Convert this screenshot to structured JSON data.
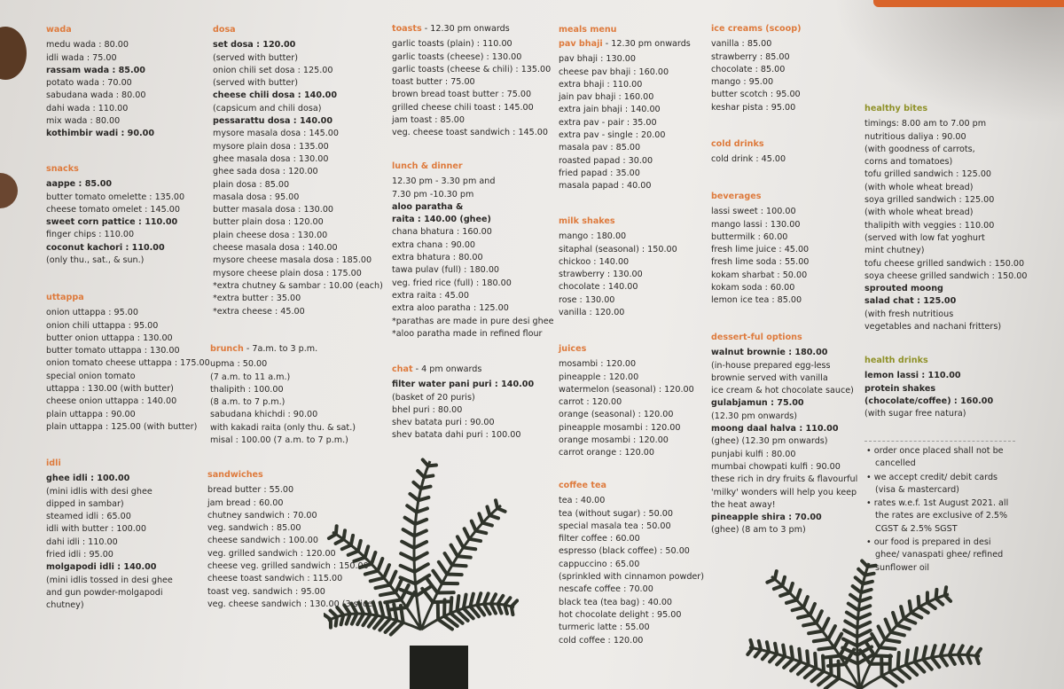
{
  "col1": [
    {
      "title": "wada",
      "items": [
        {
          "t": "medu wada  :  80.00"
        },
        {
          "t": "idli wada  :  75.00"
        },
        {
          "t": "rassam wada  :  85.00",
          "b": true
        },
        {
          "t": "potato wada  :  70.00"
        },
        {
          "t": "sabudana wada  :  80.00"
        },
        {
          "t": "dahi wada  :  110.00"
        },
        {
          "t": "mix wada  :  80.00"
        },
        {
          "t": "kothimbir wadi  :  90.00",
          "b": true
        }
      ]
    },
    {
      "title": "snacks",
      "items": [
        {
          "t": "aappe  :  85.00",
          "b": true
        },
        {
          "t": "butter tomato omelette  : 135.00"
        },
        {
          "t": "cheese tomato omelet  : 145.00"
        },
        {
          "t": "sweet corn pattice  :  110.00",
          "b": true
        },
        {
          "t": "finger chips  :  110.00"
        },
        {
          "t": "coconut kachori  :  110.00",
          "b": true
        },
        {
          "t": "(only thu., sat., & sun.)"
        }
      ]
    },
    {
      "title": "uttappa",
      "items": [
        {
          "t": "onion uttappa  :  95.00"
        },
        {
          "t": "onion chili uttappa  :  95.00"
        },
        {
          "t": "butter onion uttappa  :  130.00"
        },
        {
          "t": "butter tomato uttappa  :  130.00"
        },
        {
          "t": "onion tomato cheese uttappa  : 175.00"
        },
        {
          "t": "special onion tomato"
        },
        {
          "t": "uttappa  : 130.00 (with butter)"
        },
        {
          "t": "cheese onion uttappa  : 140.00"
        },
        {
          "t": "plain uttappa  :  90.00"
        },
        {
          "t": "plain uttappa  :  125.00 (with butter)"
        }
      ]
    },
    {
      "title": "idli",
      "items": [
        {
          "t": "ghee idli  :  100.00",
          "b": true
        },
        {
          "t": "(mini idlis with desi ghee"
        },
        {
          "t": "dipped in sambar)"
        },
        {
          "t": "steamed idli  :  65.00"
        },
        {
          "t": "idli with butter  :  100.00"
        },
        {
          "t": "dahi idli  :  110.00"
        },
        {
          "t": "fried idli  :  95.00"
        },
        {
          "t": "molgapodi idli  :  140.00",
          "b": true
        },
        {
          "t": "(mini idlis tossed in desi ghee"
        },
        {
          "t": "and gun powder-molgapodi"
        },
        {
          "t": "chutney)"
        }
      ]
    }
  ],
  "col2": [
    {
      "title": "dosa",
      "items": [
        {
          "t": "set dosa  :  120.00",
          "b": true
        },
        {
          "t": "(served with butter)"
        },
        {
          "t": "onion chili set dosa  :  125.00"
        },
        {
          "t": "(served with butter)"
        },
        {
          "t": "cheese chili dosa  :  140.00",
          "b": true
        },
        {
          "t": "(capsicum and chili dosa)"
        },
        {
          "t": "pessarattu dosa  :  140.00",
          "b": true
        },
        {
          "t": "mysore masala dosa  :  145.00"
        },
        {
          "t": "mysore plain dosa  :  135.00"
        },
        {
          "t": "ghee masala dosa  :  130.00"
        },
        {
          "t": "ghee sada dosa  :  120.00"
        },
        {
          "t": "plain dosa  :  85.00"
        },
        {
          "t": "masala dosa  :  95.00"
        },
        {
          "t": "butter masala dosa  : 130.00"
        },
        {
          "t": "butter plain dosa  :  120.00"
        },
        {
          "t": "plain cheese dosa  :  130.00"
        },
        {
          "t": "cheese masala dosa  :  140.00"
        },
        {
          "t": "mysore cheese masala dosa  :  185.00"
        },
        {
          "t": "mysore cheese plain dosa  :  175.00"
        },
        {
          "t": "*extra chutney & sambar  :  10.00 (each)"
        },
        {
          "t": "*extra butter  :  35.00"
        },
        {
          "t": "*extra cheese  :  45.00"
        }
      ]
    },
    {
      "title": "brunch",
      "sub": " - 7a.m. to 3 p.m.",
      "items": [
        {
          "t": "upma  :  50.00"
        },
        {
          "t": "(7 a.m. to 11 a.m.)"
        },
        {
          "t": "thalipith  :  100.00"
        },
        {
          "t": "(8 a.m. to 7 p.m.)"
        },
        {
          "t": "sabudana khichdi  :  90.00"
        },
        {
          "t": "with kakadi raita (only thu. & sat.)"
        },
        {
          "t": "misal  :  100.00 (7 a.m. to 7 p.m.)"
        }
      ]
    },
    {
      "title": "sandwiches",
      "items": [
        {
          "t": "bread butter  :  55.00"
        },
        {
          "t": "jam bread  :  60.00"
        },
        {
          "t": "chutney sandwich  :  70.00"
        },
        {
          "t": "veg. sandwich  :  85.00"
        },
        {
          "t": "cheese sandwich  :  100.00"
        },
        {
          "t": "veg. grilled sandwich  :  120.00"
        },
        {
          "t": "cheese veg. grilled sandwich  :  150.00"
        },
        {
          "t": "cheese toast sandwich  :  115.00"
        },
        {
          "t": "toast veg. sandwich  :  95.00"
        },
        {
          "t": "veg. cheese sandwich  :  130.00 (3 slice)"
        }
      ]
    }
  ],
  "col3": [
    {
      "title": "toasts",
      "sub": " - 12.30 pm onwards",
      "items": [
        {
          "t": "garlic toasts (plain)  : 110.00"
        },
        {
          "t": "garlic toasts (cheese)  : 130.00"
        },
        {
          "t": "garlic toasts (cheese & chili)  : 135.00"
        },
        {
          "t": "toast butter  : 75.00"
        },
        {
          "t": "brown bread toast butter  : 75.00"
        },
        {
          "t": "grilled cheese chili toast  : 145.00"
        },
        {
          "t": "jam toast  : 85.00"
        },
        {
          "t": "veg. cheese toast sandwich  : 145.00"
        }
      ]
    },
    {
      "title": "lunch & dinner",
      "items": [
        {
          "t": "12.30 pm - 3.30 pm and"
        },
        {
          "t": "7.30 pm -10.30 pm"
        },
        {
          "t": "aloo paratha &",
          "b": true
        },
        {
          "t": "raita  :  140.00 (ghee)",
          "b": true
        },
        {
          "t": "chana bhatura  :  160.00"
        },
        {
          "t": "extra chana  :  90.00"
        },
        {
          "t": "extra bhatura  :  80.00"
        },
        {
          "t": "tawa pulav (full)  :  180.00"
        },
        {
          "t": "veg. fried rice (full)  :  180.00"
        },
        {
          "t": "extra raita  :  45.00"
        },
        {
          "t": "extra aloo paratha  :  125.00"
        },
        {
          "t": "*parathas are made in pure desi ghee"
        },
        {
          "t": "*aloo paratha made in refined flour"
        }
      ]
    },
    {
      "title": "chat",
      "sub": " - 4 pm onwards",
      "items": [
        {
          "t": "filter water pani puri  :  140.00",
          "b": true
        },
        {
          "t": "(basket of 20 puris)"
        },
        {
          "t": "bhel puri  :  80.00"
        },
        {
          "t": "shev batata puri  :  90.00"
        },
        {
          "t": "shev batata dahi puri  :  100.00"
        }
      ]
    }
  ],
  "col4": [
    {
      "title": "meals menu",
      "items": []
    },
    {
      "title": "pav bhaji",
      "sub": " - 12.30 pm onwards",
      "items": [
        {
          "t": "pav bhaji  : 130.00"
        },
        {
          "t": "cheese pav bhaji  : 160.00"
        },
        {
          "t": "extra bhaji  :  110.00"
        },
        {
          "t": "jain pav bhaji  : 160.00"
        },
        {
          "t": "extra jain bhaji  : 140.00"
        },
        {
          "t": "extra pav - pair  :  35.00"
        },
        {
          "t": "extra pav - single  :  20.00"
        },
        {
          "t": "masala pav  :  85.00"
        },
        {
          "t": "roasted papad  :  30.00"
        },
        {
          "t": "fried papad  :  35.00"
        },
        {
          "t": "masala papad  :  40.00"
        }
      ]
    },
    {
      "title": "milk shakes",
      "items": [
        {
          "t": "mango  : 180.00"
        },
        {
          "t": "sitaphal (seasonal)  : 150.00"
        },
        {
          "t": "chickoo  : 140.00"
        },
        {
          "t": "strawberry  : 130.00"
        },
        {
          "t": "chocolate  : 140.00"
        },
        {
          "t": "rose  : 130.00"
        },
        {
          "t": "vanilla  : 120.00"
        }
      ]
    },
    {
      "title": "juices",
      "items": [
        {
          "t": "mosambi  : 120.00"
        },
        {
          "t": "pineapple  : 120.00"
        },
        {
          "t": "watermelon (seasonal)  : 120.00"
        },
        {
          "t": "carrot  : 120.00"
        },
        {
          "t": "orange (seasonal)  : 120.00"
        },
        {
          "t": "pineapple mosambi  : 120.00"
        },
        {
          "t": "orange mosambi  : 120.00"
        },
        {
          "t": "carrot orange  : 120.00"
        }
      ]
    },
    {
      "title": "coffee tea",
      "items": [
        {
          "t": "tea  :  40.00"
        },
        {
          "t": "tea (without sugar)  :  50.00"
        },
        {
          "t": "special masala tea  :  50.00"
        },
        {
          "t": "filter coffee  :  60.00"
        },
        {
          "t": "espresso (black coffee)  :  50.00"
        },
        {
          "t": "cappuccino  :  65.00"
        },
        {
          "t": "(sprinkled with cinnamon powder)"
        },
        {
          "t": "nescafe coffee  :  70.00"
        },
        {
          "t": "black tea (tea bag)  :  40.00"
        },
        {
          "t": "hot chocolate delight  : 95.00"
        },
        {
          "t": "turmeric latte  :  55.00"
        },
        {
          "t": "cold coffee  :  120.00"
        }
      ]
    }
  ],
  "col5": [
    {
      "title": "ice creams (scoop)",
      "items": [
        {
          "t": "vanilla  :  85.00"
        },
        {
          "t": "strawberry  :  85.00"
        },
        {
          "t": "chocolate  :  85.00"
        },
        {
          "t": "mango  :  95.00"
        },
        {
          "t": "butter scotch  :  95.00"
        },
        {
          "t": "keshar pista  :  95.00"
        }
      ]
    },
    {
      "title": "cold drinks",
      "items": [
        {
          "t": "cold drink  :  45.00"
        }
      ]
    },
    {
      "title": "beverages",
      "items": [
        {
          "t": "lassi sweet  :  100.00"
        },
        {
          "t": "mango lassi  : 130.00"
        },
        {
          "t": "buttermilk  :  60.00"
        },
        {
          "t": "fresh lime juice  :  45.00"
        },
        {
          "t": "fresh lime soda  :  55.00"
        },
        {
          "t": "kokam sharbat  :  50.00"
        },
        {
          "t": "kokam soda  :  60.00"
        },
        {
          "t": "lemon ice tea  :  85.00"
        }
      ]
    },
    {
      "title": "dessert-ful options",
      "items": [
        {
          "t": "walnut brownie  :  180.00",
          "b": true
        },
        {
          "t": "(in-house prepared egg-less"
        },
        {
          "t": "brownie served with vanilla"
        },
        {
          "t": "ice cream & hot chocolate sauce)"
        },
        {
          "t": "gulabjamun  :  75.00",
          "b": true
        },
        {
          "t": "(12.30 pm onwards)"
        },
        {
          "t": "moong daal halva  :  110.00",
          "b": true
        },
        {
          "t": "(ghee) (12.30 pm onwards)"
        },
        {
          "t": "punjabi kulfi  :  80.00"
        },
        {
          "t": "mumbai chowpati kulfi  :  90.00"
        },
        {
          "t": "these rich in dry fruits & flavourful"
        },
        {
          "t": "'milky' wonders will help you keep"
        },
        {
          "t": "the heat away!"
        },
        {
          "t": "pineapple shira  :  70.00",
          "b": true
        },
        {
          "t": "(ghee) (8 am to 3 pm)"
        }
      ]
    }
  ],
  "col6": [
    {
      "title": "healthy bites",
      "items": [
        {
          "t": "timings: 8.00 am to  7.00 pm"
        },
        {
          "t": "nutritious daliya  :  90.00"
        },
        {
          "t": "(with goodness of carrots,"
        },
        {
          "t": "corns and tomatoes)"
        },
        {
          "t": "tofu grilled sandwich  :  125.00"
        },
        {
          "t": "(with whole wheat bread)"
        },
        {
          "t": "soya grilled sandwich  :  125.00"
        },
        {
          "t": "(with whole wheat bread)"
        },
        {
          "t": "thalipith with veggies  :  110.00"
        },
        {
          "t": "(served with low fat yoghurt"
        },
        {
          "t": "mint chutney)"
        },
        {
          "t": "tofu cheese grilled sandwich  :  150.00"
        },
        {
          "t": "soya cheese grilled sandwich  :  150.00"
        },
        {
          "t": "sprouted moong",
          "b": true
        },
        {
          "t": "salad chat  :  125.00",
          "b": true
        },
        {
          "t": "(with fresh nutritious"
        },
        {
          "t": "vegetables and nachani fritters)"
        }
      ]
    },
    {
      "title": "health drinks",
      "items": [
        {
          "t": "lemon lassi  :  110.00",
          "b": true
        },
        {
          "t": "protein shakes",
          "b": true
        },
        {
          "t": "(chocolate/coffee)  :  160.00",
          "b": true
        },
        {
          "t": "(with sugar free natura)"
        }
      ]
    }
  ],
  "notes": [
    "order once placed shall not be cancelled",
    "we accept credit/ debit cards (visa & mastercard)",
    "rates w.e.f. 1st August 2021. all the rates are exclusive of 2.5% CGST & 2.5% SGST",
    "our food is prepared in desi ghee/ vanaspati ghee/ refined sunflower oil"
  ],
  "colors": {
    "heading": "#de7a3c",
    "healthy_heading": "#8f9128",
    "accent_strip": "#d9642a",
    "text": "#2a2826"
  }
}
